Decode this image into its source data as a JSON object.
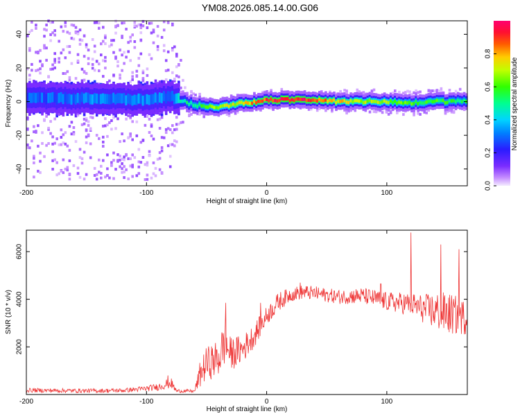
{
  "title": "YM08.2026.085.14.00.G06",
  "colors": {
    "signal_line": "#ee3333",
    "frame": "#000000",
    "background": "#ffffff"
  },
  "chart_data": [
    {
      "type": "heatmap",
      "xlabel": "Height of straight line (km)",
      "ylabel": "Frequency (Hz)",
      "xlim": [
        -200,
        167
      ],
      "ylim": [
        -50,
        48
      ],
      "x_ticks": [
        -200,
        -100,
        0,
        100
      ],
      "y_ticks": [
        -40,
        -20,
        0,
        20,
        40
      ],
      "colorbar": {
        "label": "Normalized spectral amplitude",
        "range": [
          0,
          1
        ],
        "ticks": [
          "0.0",
          "0.2",
          "0.4",
          "0.6",
          "0.8"
        ],
        "colormap": "rainbow"
      },
      "ridge": {
        "description_free": true,
        "x": [
          -200,
          -150,
          -100,
          -80,
          -68,
          -60,
          -40,
          -20,
          0,
          20,
          40,
          60,
          80,
          100,
          120,
          140,
          160,
          167
        ],
        "center_hz": [
          2,
          2,
          1,
          3,
          0,
          -2,
          -3,
          -1,
          1,
          1,
          1,
          0,
          0,
          0,
          -1,
          0,
          0,
          0
        ],
        "amplitude": [
          0.25,
          0.3,
          0.3,
          0.3,
          0.45,
          0.55,
          0.65,
          0.75,
          0.9,
          0.95,
          0.9,
          0.75,
          0.7,
          0.65,
          0.6,
          0.6,
          0.55,
          0.55
        ],
        "noise_spread_hz": [
          48,
          48,
          48,
          48,
          6,
          5,
          4,
          4,
          4,
          4,
          4,
          5,
          5,
          5,
          5,
          5,
          5,
          5
        ]
      }
    },
    {
      "type": "line",
      "xlabel": "Height of straight line (km)",
      "ylabel": "SNR (10 * v/v)",
      "xlim": [
        -200,
        167
      ],
      "ylim": [
        0,
        6900
      ],
      "x_ticks": [
        -200,
        -100,
        0,
        100
      ],
      "y_ticks": [
        2000,
        4000,
        6000
      ],
      "series": [
        {
          "x": [
            -200,
            -180,
            -160,
            -140,
            -120,
            -100,
            -90,
            -80,
            -75,
            -60,
            -55,
            -50,
            -40,
            -35,
            -30,
            -20,
            -10,
            0,
            10,
            20,
            30,
            40,
            60,
            80,
            100,
            120,
            130,
            140,
            150,
            160,
            167
          ],
          "y": [
            180,
            170,
            160,
            160,
            170,
            250,
            320,
            500,
            150,
            140,
            900,
            1300,
            1500,
            2200,
            1700,
            1900,
            2500,
            3300,
            3900,
            4200,
            4300,
            4250,
            4100,
            4150,
            3900,
            3800,
            3600,
            3500,
            3400,
            3300,
            3200
          ],
          "spread": [
            90,
            90,
            90,
            90,
            90,
            120,
            150,
            250,
            80,
            60,
            600,
            700,
            800,
            1000,
            700,
            600,
            500,
            400,
            400,
            300,
            300,
            300,
            300,
            350,
            400,
            500,
            600,
            800,
            900,
            800,
            700
          ],
          "spikes": [
            {
              "x": -82,
              "y": 800
            },
            {
              "x": -34,
              "y": 3850
            },
            {
              "x": -5,
              "y": 3850
            },
            {
              "x": 28,
              "y": 4700
            },
            {
              "x": 95,
              "y": 4650
            },
            {
              "x": 120,
              "y": 6800
            },
            {
              "x": 145,
              "y": 6300
            },
            {
              "x": 160,
              "y": 6100
            }
          ]
        }
      ]
    }
  ]
}
